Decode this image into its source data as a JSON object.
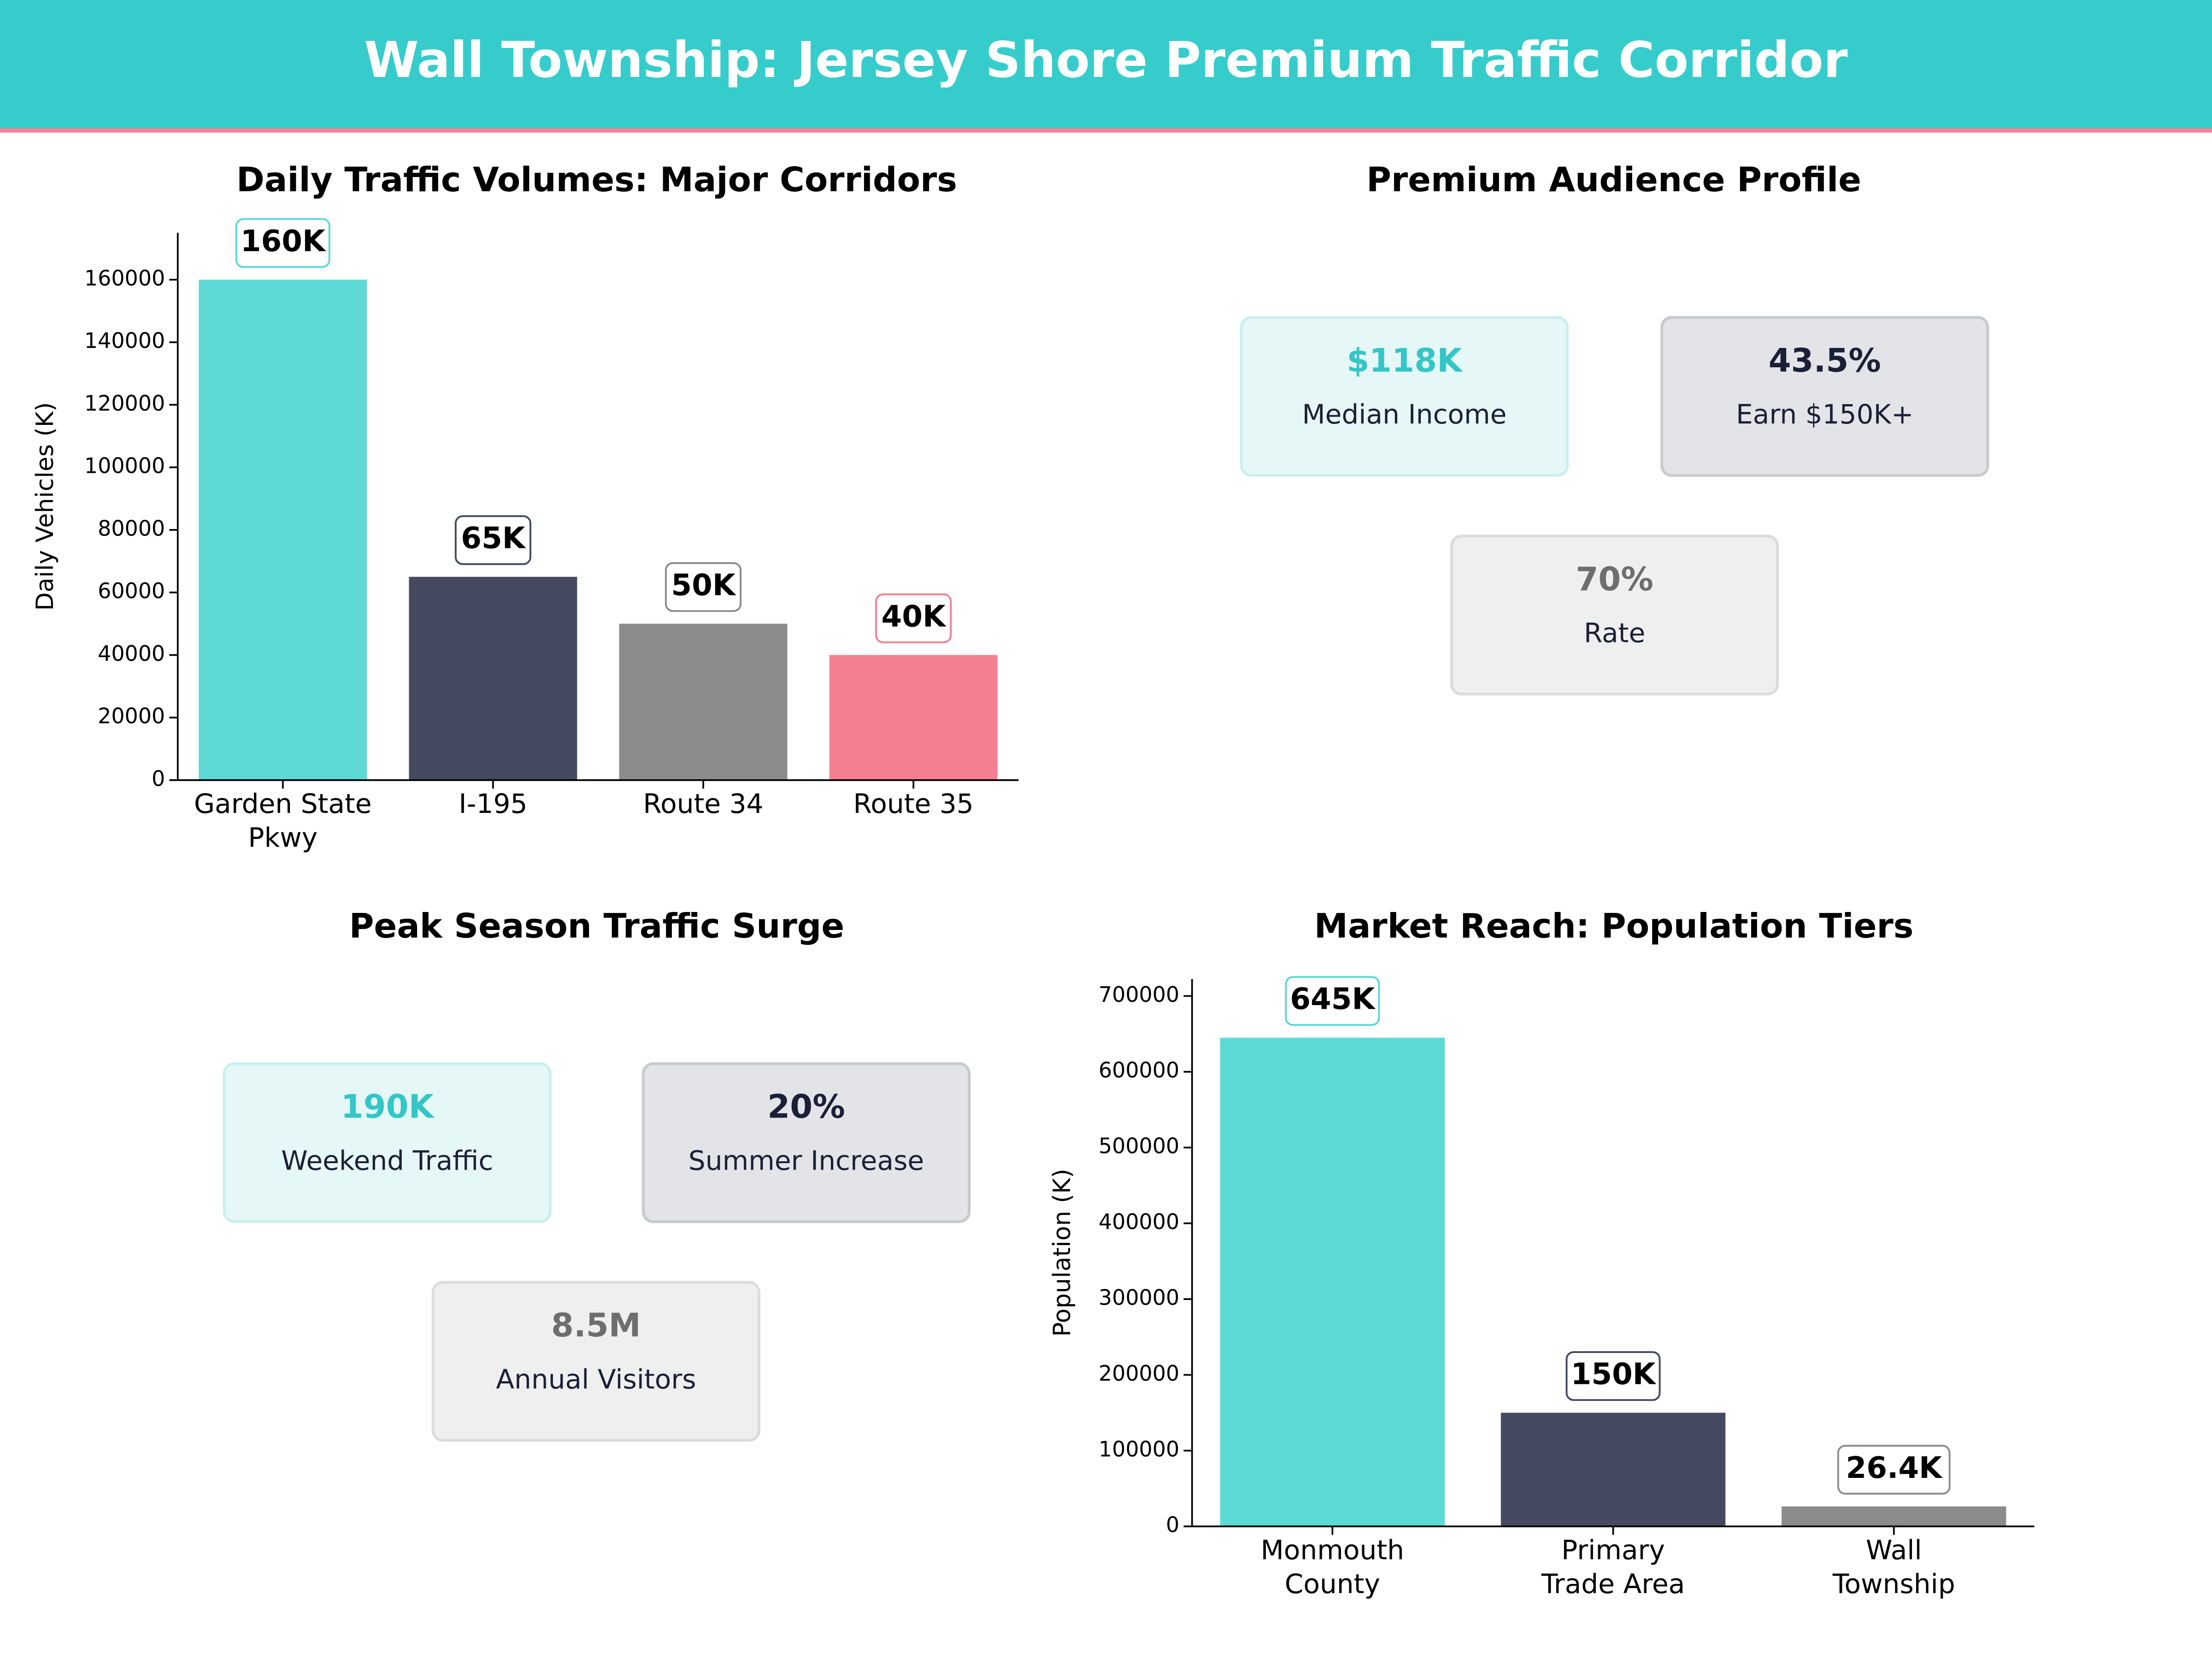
{
  "header": {
    "title": "Wall Township: Jersey Shore Premium Traffic Corridor"
  },
  "chart_data": [
    {
      "type": "bar",
      "title": "Daily Traffic Volumes: Major Corridors",
      "y_label": "Daily Vehicles (K)",
      "categories": [
        "Garden State\nPkwy",
        "I-195",
        "Route 34",
        "Route 35"
      ],
      "values": [
        160000,
        65000,
        50000,
        40000
      ],
      "value_labels": [
        "160K",
        "65K",
        "50K",
        "40K"
      ],
      "colors": [
        "#5dd8d5",
        "#464a60",
        "#8c8c8c",
        "#f57f92"
      ],
      "ylim": [
        0,
        175000
      ],
      "yticks": [
        0,
        20000,
        40000,
        60000,
        80000,
        100000,
        120000,
        140000,
        160000
      ]
    },
    {
      "type": "bar",
      "title": "Market Reach: Population Tiers",
      "y_label": "Population (K)",
      "categories": [
        "Monmouth\nCounty",
        "Primary\nTrade Area",
        "Wall\nTownship"
      ],
      "values": [
        645000,
        150000,
        26400
      ],
      "value_labels": [
        "645K",
        "150K",
        "26.4K"
      ],
      "colors": [
        "#5dd8d5",
        "#464a60",
        "#8c8c8c"
      ],
      "ylim": [
        0,
        722400
      ],
      "yticks": [
        0,
        100000,
        200000,
        300000,
        400000,
        500000,
        600000,
        700000
      ]
    }
  ],
  "stat_panels": [
    {
      "title": "Premium Audience Profile",
      "cards": [
        {
          "value": "$118K",
          "label": "Median Income"
        },
        {
          "value": "43.5%",
          "label": "Earn $150K+"
        },
        {
          "value": "70%",
          "label": "Rate"
        }
      ]
    },
    {
      "title": "Peak Season Traffic Surge",
      "cards": [
        {
          "value": "190K",
          "label": "Weekend Traffic"
        },
        {
          "value": "20%",
          "label": "Summer Increase"
        },
        {
          "value": "8.5M",
          "label": "Annual Visitors"
        }
      ]
    }
  ]
}
